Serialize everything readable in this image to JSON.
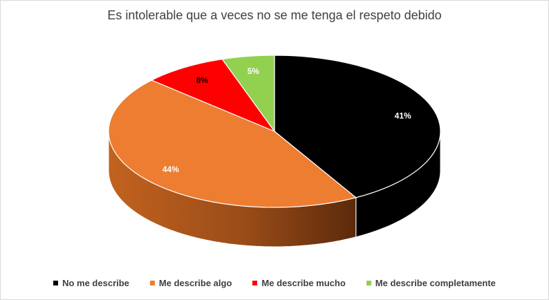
{
  "chart_data": {
    "type": "pie",
    "title": "Es intolerable que a veces no se me tenga el respeto debido",
    "categories": [
      "No me describe",
      "Me describe algo",
      "Me describe mucho",
      "Me describe completamente"
    ],
    "values": [
      41,
      44,
      8,
      5
    ],
    "labels": [
      "41%",
      "44%",
      "8%",
      "5%"
    ],
    "colors": [
      "#000000",
      "#ed7d31",
      "#ff0000",
      "#92d050"
    ],
    "side_colors": [
      "#000000",
      "#8a4216",
      "#8b0000",
      "#4a7a24"
    ],
    "label_colors": [
      "#ffffff",
      "#ffffff",
      "#000000",
      "#ffffff"
    ],
    "legend_position": "bottom",
    "style": "3d"
  }
}
